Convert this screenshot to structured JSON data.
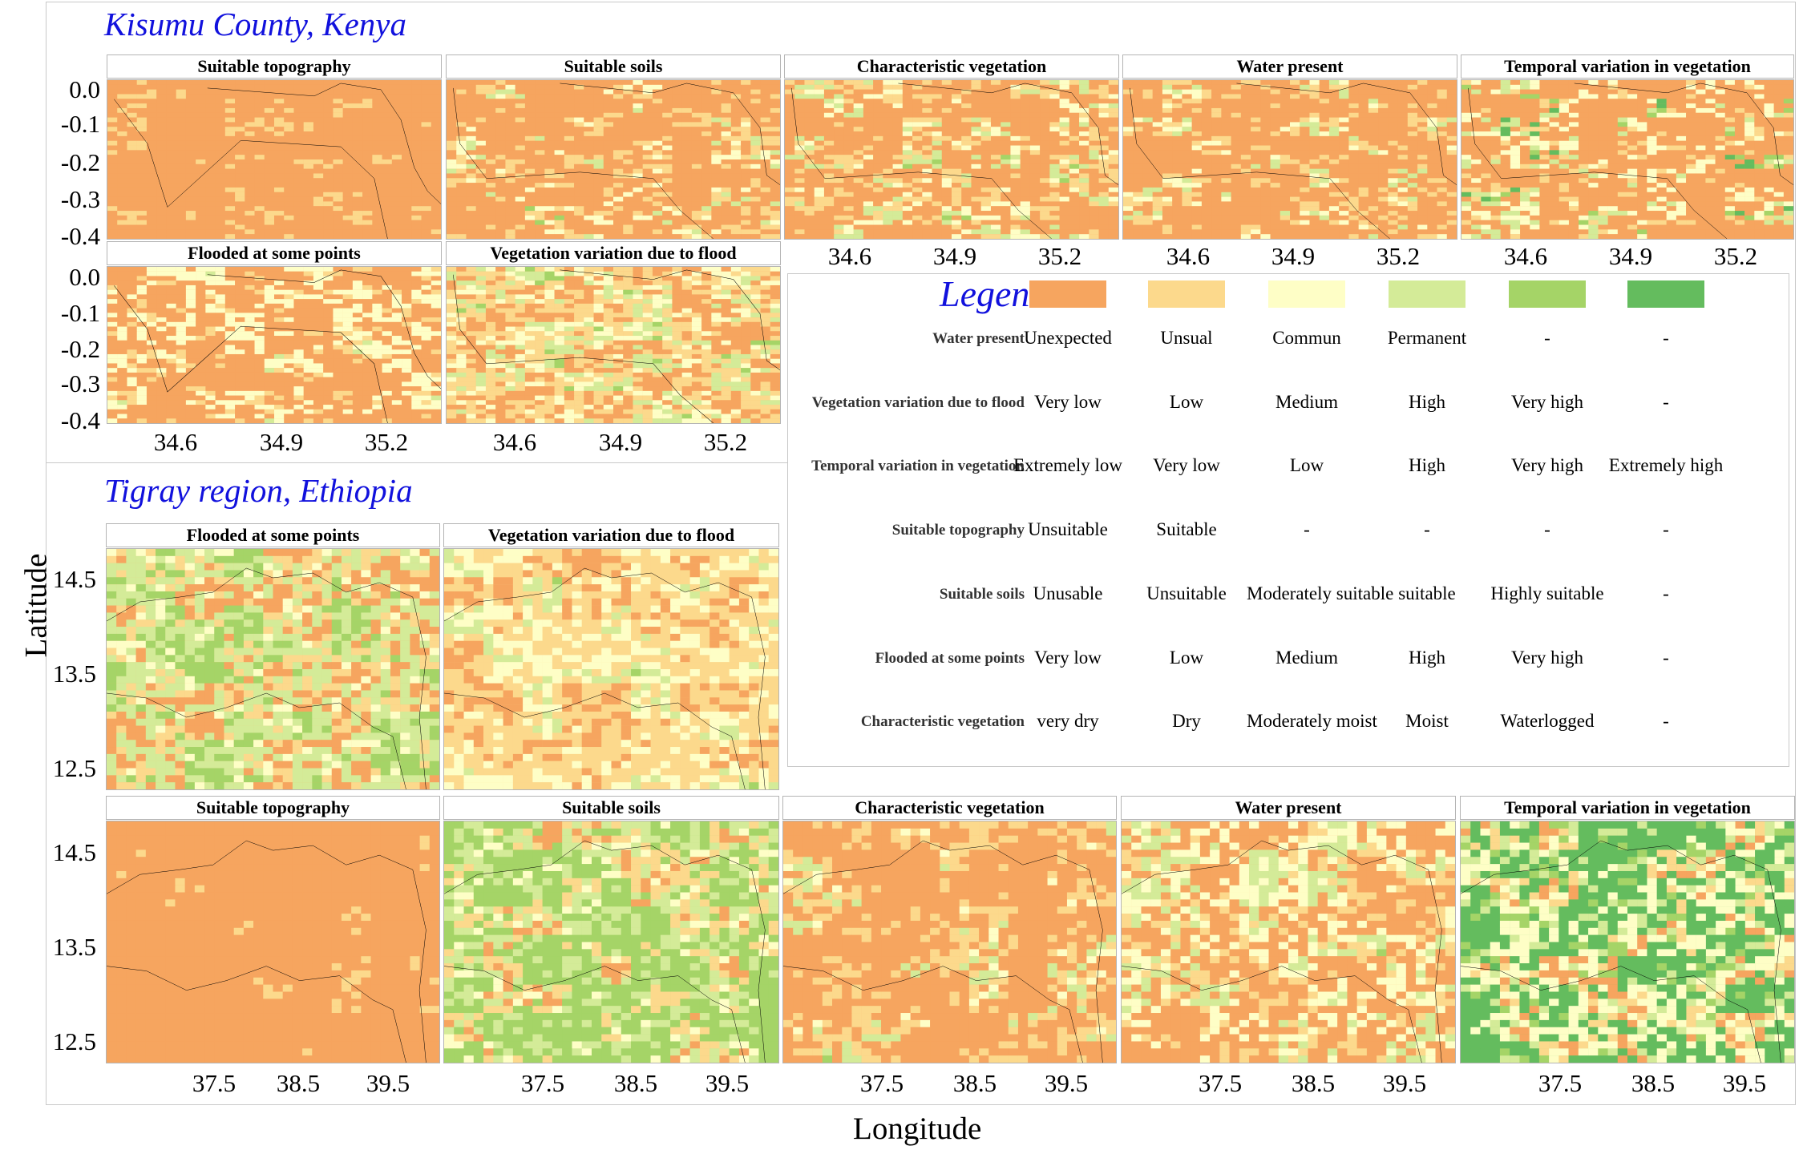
{
  "regions": {
    "kisumu": {
      "title": "Kisumu County, Kenya",
      "yticks": [
        "0.0",
        "-0.1",
        "-0.2",
        "-0.3",
        "-0.4"
      ],
      "xticks": [
        "34.6",
        "34.9",
        "35.2"
      ],
      "panels": [
        "Suitable topography",
        "Suitable soils",
        "Characteristic vegetation",
        "Water present",
        "Temporal variation in vegetation",
        "Flooded at some points",
        "Vegetation variation due to flood"
      ]
    },
    "tigray": {
      "title": "Tigray region, Ethiopia",
      "yticks": [
        "14.5",
        "13.5",
        "12.5"
      ],
      "xticks": [
        "37.5",
        "38.5",
        "39.5"
      ],
      "panels": [
        "Flooded at some points",
        "Vegetation variation due to flood",
        "Suitable topography",
        "Suitable soils",
        "Characteristic vegetation",
        "Water present",
        "Temporal variation in vegetation"
      ]
    }
  },
  "axes": {
    "xlabel": "Longitude",
    "ylabel": "Latitude"
  },
  "legend": {
    "title": "Legend",
    "colors": [
      "#F6A55F",
      "#FCD98C",
      "#FEFEC6",
      "#D4EB98",
      "#A5D467",
      "#64BC5E"
    ],
    "rows": [
      {
        "label": "Water present",
        "values": [
          "Unexpected",
          "Unsual",
          "Commun",
          "Permanent",
          "-",
          "-"
        ]
      },
      {
        "label": "Vegetation variation due to flood",
        "values": [
          "Very low",
          "Low",
          "Medium",
          "High",
          "Very high",
          "-"
        ]
      },
      {
        "label": "Temporal variation in vegetation",
        "values": [
          "Extremely low",
          "Very low",
          "Low",
          "High",
          "Very high",
          "Extremely high"
        ]
      },
      {
        "label": "Suitable topography",
        "values": [
          "Unsuitable",
          "Suitable",
          "-",
          "-",
          "-",
          "-"
        ]
      },
      {
        "label": "Suitable soils",
        "values": [
          "Unusable",
          "Unsuitable",
          "Moderately suitable",
          "suitable",
          "Highly suitable",
          "-"
        ]
      },
      {
        "label": "Flooded at some points",
        "values": [
          "Very low",
          "Low",
          "Medium",
          "High",
          "Very high",
          "-"
        ]
      },
      {
        "label": "Characteristic vegetation",
        "values": [
          "very dry",
          "Dry",
          "Moderately moist",
          "Moist",
          "Waterlogged",
          "-"
        ]
      }
    ]
  }
}
